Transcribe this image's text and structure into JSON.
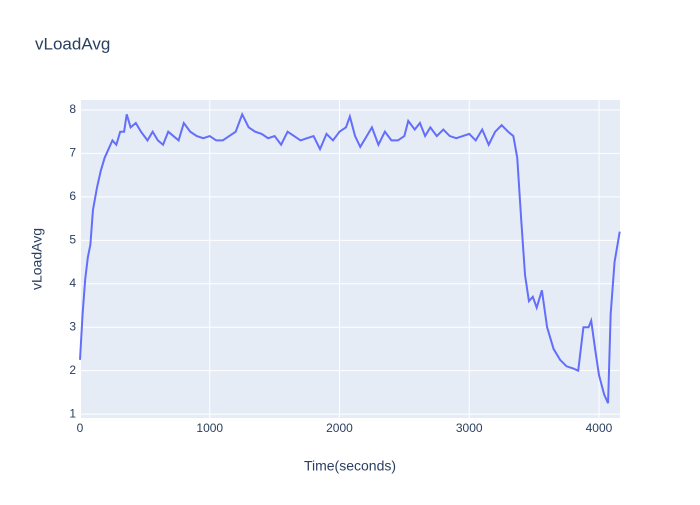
{
  "chart_data": {
    "type": "line",
    "title": "vLoadAvg",
    "x_label": "Time(seconds)",
    "y_label": "vLoadAvg",
    "x": [
      0,
      20,
      40,
      60,
      80,
      100,
      130,
      160,
      190,
      220,
      250,
      280,
      310,
      340,
      360,
      390,
      430,
      470,
      520,
      560,
      600,
      640,
      680,
      720,
      760,
      800,
      850,
      900,
      950,
      1000,
      1050,
      1100,
      1150,
      1200,
      1250,
      1300,
      1350,
      1400,
      1450,
      1500,
      1550,
      1600,
      1650,
      1700,
      1750,
      1800,
      1850,
      1900,
      1950,
      2000,
      2050,
      2080,
      2120,
      2160,
      2200,
      2250,
      2300,
      2350,
      2400,
      2450,
      2500,
      2530,
      2580,
      2620,
      2660,
      2700,
      2750,
      2800,
      2850,
      2900,
      2950,
      3000,
      3050,
      3100,
      3150,
      3200,
      3250,
      3300,
      3340,
      3370,
      3400,
      3430,
      3460,
      3490,
      3520,
      3560,
      3600,
      3650,
      3700,
      3750,
      3800,
      3840,
      3880,
      3920,
      3940,
      3970,
      4000,
      4040,
      4070,
      4090,
      4120,
      4160
    ],
    "series": [
      {
        "name": "vLoadAvg",
        "color": "#636efa",
        "values": [
          2.25,
          3.3,
          4.1,
          4.6,
          4.9,
          5.7,
          6.2,
          6.6,
          6.9,
          7.1,
          7.3,
          7.2,
          7.5,
          7.5,
          7.9,
          7.6,
          7.7,
          7.5,
          7.3,
          7.5,
          7.3,
          7.2,
          7.5,
          7.4,
          7.3,
          7.7,
          7.5,
          7.4,
          7.35,
          7.4,
          7.3,
          7.3,
          7.4,
          7.5,
          7.9,
          7.6,
          7.5,
          7.45,
          7.35,
          7.4,
          7.2,
          7.5,
          7.4,
          7.3,
          7.35,
          7.4,
          7.1,
          7.45,
          7.3,
          7.5,
          7.6,
          7.85,
          7.4,
          7.15,
          7.35,
          7.6,
          7.2,
          7.5,
          7.3,
          7.3,
          7.4,
          7.75,
          7.55,
          7.7,
          7.4,
          7.6,
          7.4,
          7.55,
          7.4,
          7.35,
          7.4,
          7.45,
          7.3,
          7.55,
          7.2,
          7.5,
          7.65,
          7.5,
          7.4,
          6.9,
          5.5,
          4.2,
          3.6,
          3.7,
          3.45,
          3.85,
          3.0,
          2.5,
          2.25,
          2.1,
          2.05,
          2.0,
          3.0,
          3.0,
          3.15,
          2.5,
          1.9,
          1.45,
          1.25,
          3.3,
          4.5,
          5.2
        ]
      }
    ],
    "xlim": [
      0,
      4162
    ],
    "ylim": [
      0.91,
      8.23
    ],
    "xticks": [
      0,
      1000,
      2000,
      3000,
      4000
    ],
    "yticks": [
      1,
      2,
      3,
      4,
      5,
      6,
      7,
      8
    ],
    "grid": true
  }
}
